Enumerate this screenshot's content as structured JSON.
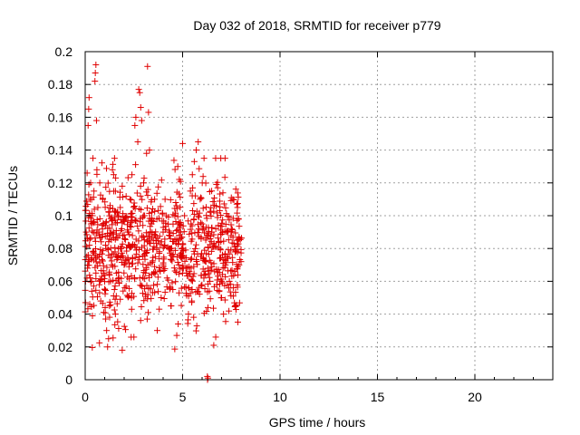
{
  "chart_data": {
    "type": "scatter",
    "title": "Day 032 of 2018, SRMTID for receiver p779",
    "xlabel": "GPS time / hours",
    "ylabel": "SRMTID / TECUs",
    "xlim": [
      0,
      24
    ],
    "ylim": [
      0,
      0.2
    ],
    "xticks": [
      0,
      5,
      10,
      15,
      20
    ],
    "xtick_labels": [
      "0",
      "5",
      "10",
      "15",
      "20"
    ],
    "yticks": [
      0,
      0.02,
      0.04,
      0.06,
      0.08,
      0.1,
      0.12,
      0.14,
      0.16,
      0.18,
      0.2
    ],
    "ytick_labels": [
      "0",
      "0.02",
      "0.04",
      "0.06",
      "0.08",
      "0.1",
      "0.12",
      "0.14",
      "0.16",
      "0.18",
      "0.2"
    ],
    "grid": true,
    "marker": "+",
    "color": "#e00000",
    "series": [
      {
        "name": "SRMTID",
        "points": [
          [
            0.02,
            0.047
          ],
          [
            0.05,
            0.09
          ],
          [
            0.08,
            0.075
          ],
          [
            0.1,
            0.126
          ],
          [
            0.12,
            0.068
          ],
          [
            0.15,
            0.155
          ],
          [
            0.18,
            0.165
          ],
          [
            0.2,
            0.172
          ],
          [
            0.22,
            0.082
          ],
          [
            0.25,
            0.11
          ],
          [
            0.28,
            0.12
          ],
          [
            0.3,
            0.095
          ],
          [
            0.33,
            0.06
          ],
          [
            0.36,
            0.1
          ],
          [
            0.4,
            0.135
          ],
          [
            0.45,
            0.115
          ],
          [
            0.5,
            0.182
          ],
          [
            0.52,
            0.187
          ],
          [
            0.55,
            0.192
          ],
          [
            0.58,
            0.158
          ],
          [
            0.6,
            0.128
          ],
          [
            0.62,
            0.075
          ],
          [
            0.65,
            0.105
          ],
          [
            0.7,
            0.09
          ],
          [
            0.75,
            0.12
          ],
          [
            0.8,
            0.048
          ],
          [
            0.85,
            0.063
          ],
          [
            0.9,
            0.11
          ],
          [
            0.95,
            0.095
          ],
          [
            1.0,
            0.055
          ],
          [
            1.05,
            0.037
          ],
          [
            1.1,
            0.03
          ],
          [
            1.15,
            0.02
          ],
          [
            1.2,
            0.025
          ],
          [
            1.25,
            0.045
          ],
          [
            1.3,
            0.06
          ],
          [
            1.35,
            0.07
          ],
          [
            1.4,
            0.128
          ],
          [
            1.45,
            0.09
          ],
          [
            1.5,
            0.055
          ],
          [
            1.55,
            0.04
          ],
          [
            1.6,
            0.065
          ],
          [
            1.7,
            0.08
          ],
          [
            1.8,
            0.105
          ],
          [
            1.9,
            0.118
          ],
          [
            2.0,
            0.07
          ],
          [
            2.1,
            0.057
          ],
          [
            2.2,
            0.09
          ],
          [
            2.3,
            0.11
          ],
          [
            2.4,
            0.125
          ],
          [
            2.5,
            0.026
          ],
          [
            2.55,
            0.155
          ],
          [
            2.6,
            0.16
          ],
          [
            2.7,
            0.145
          ],
          [
            2.75,
            0.177
          ],
          [
            2.8,
            0.175
          ],
          [
            2.85,
            0.166
          ],
          [
            2.9,
            0.158
          ],
          [
            3.0,
            0.12
          ],
          [
            3.05,
            0.1
          ],
          [
            3.1,
            0.065
          ],
          [
            3.15,
            0.138
          ],
          [
            3.2,
            0.191
          ],
          [
            3.25,
            0.163
          ],
          [
            3.3,
            0.14
          ],
          [
            3.4,
            0.095
          ],
          [
            3.5,
            0.085
          ],
          [
            3.6,
            0.075
          ],
          [
            3.7,
            0.03
          ],
          [
            3.8,
            0.043
          ],
          [
            3.9,
            0.05
          ],
          [
            4.0,
            0.09
          ],
          [
            4.1,
            0.11
          ],
          [
            4.2,
            0.062
          ],
          [
            4.3,
            0.08
          ],
          [
            4.4,
            0.045
          ],
          [
            4.5,
            0.055
          ],
          [
            4.6,
            0.1
          ],
          [
            4.7,
            0.027
          ],
          [
            4.8,
            0.07
          ],
          [
            4.9,
            0.09
          ],
          [
            5.0,
            0.144
          ],
          [
            5.1,
            0.1
          ],
          [
            5.2,
            0.065
          ],
          [
            5.3,
            0.04
          ],
          [
            5.4,
            0.115
          ],
          [
            5.5,
            0.125
          ],
          [
            5.6,
            0.133
          ],
          [
            5.7,
            0.14
          ],
          [
            5.8,
            0.145
          ],
          [
            5.9,
            0.11
          ],
          [
            6.0,
            0.095
          ],
          [
            6.1,
            0.135
          ],
          [
            6.2,
            0.072
          ],
          [
            6.3,
            0.044
          ],
          [
            6.4,
            0.06
          ],
          [
            6.5,
            0.09
          ],
          [
            6.6,
            0.021
          ],
          [
            6.7,
            0.026
          ],
          [
            6.8,
            0.117
          ],
          [
            6.9,
            0.103
          ],
          [
            7.0,
            0.05
          ],
          [
            7.1,
            0.04
          ],
          [
            7.2,
            0.07
          ],
          [
            7.3,
            0.09
          ],
          [
            7.4,
            0.06
          ],
          [
            7.5,
            0.111
          ],
          [
            7.6,
            0.056
          ],
          [
            7.7,
            0.045
          ],
          [
            7.8,
            0.085
          ],
          [
            7.9,
            0.07
          ],
          [
            8.0,
            0.072
          ]
        ]
      }
    ],
    "dense_cloud": {
      "x_range": [
        0.0,
        8.05
      ],
      "y_center": 0.08,
      "y_spread_typical": [
        0.04,
        0.125
      ],
      "count": 900
    },
    "extra_points": [
      [
        6.28,
        0.0
      ],
      [
        6.3,
        0.001
      ],
      [
        6.27,
        0.002
      ]
    ]
  }
}
